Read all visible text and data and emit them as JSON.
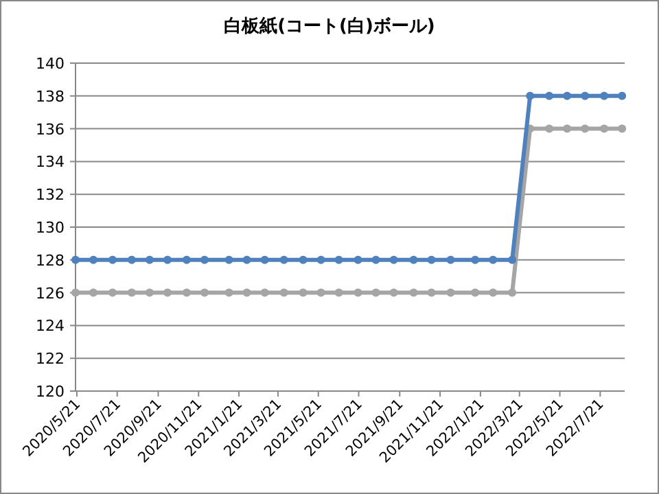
{
  "chart_data": {
    "type": "line",
    "title": "白板紙(コート(白)ボール)",
    "x": [
      "2020-05-19",
      "2020-06-15",
      "2020-07-14",
      "2020-08-12",
      "2020-09-08",
      "2020-10-05",
      "2020-11-03",
      "2020-11-30",
      "2021-01-06",
      "2021-02-02",
      "2021-03-01",
      "2021-03-30",
      "2021-04-28",
      "2021-05-25",
      "2021-06-21",
      "2021-07-20",
      "2021-08-16",
      "2021-09-12",
      "2021-10-12",
      "2021-11-08",
      "2021-12-07",
      "2022-01-13",
      "2022-02-09",
      "2022-03-10",
      "2022-04-06",
      "2022-05-05",
      "2022-06-01",
      "2022-06-28",
      "2022-07-27",
      "2022-08-23"
    ],
    "series": [
      {
        "color": "#a5a5a5",
        "values": [
          126,
          126,
          126,
          126,
          126,
          126,
          126,
          126,
          126,
          126,
          126,
          126,
          126,
          126,
          126,
          126,
          126,
          126,
          126,
          126,
          126,
          126,
          126,
          126,
          136,
          136,
          136,
          136,
          136,
          136
        ]
      },
      {
        "color": "#4f81bd",
        "values": [
          128,
          128,
          128,
          128,
          128,
          128,
          128,
          128,
          128,
          128,
          128,
          128,
          128,
          128,
          128,
          128,
          128,
          128,
          128,
          128,
          128,
          128,
          128,
          128,
          138,
          138,
          138,
          138,
          138,
          138
        ]
      }
    ],
    "xlim": [
      "2020-05-19",
      "2022-08-27"
    ],
    "xticks": [
      {
        "value": "2020-05-21",
        "label": "2020/5/21"
      },
      {
        "value": "2020-07-21",
        "label": "2020/7/21"
      },
      {
        "value": "2020-09-21",
        "label": "2020/9/21"
      },
      {
        "value": "2020-11-21",
        "label": "2020/11/21"
      },
      {
        "value": "2021-01-21",
        "label": "2021/1/21"
      },
      {
        "value": "2021-03-21",
        "label": "2021/3/21"
      },
      {
        "value": "2021-05-21",
        "label": "2021/5/21"
      },
      {
        "value": "2021-07-21",
        "label": "2021/7/21"
      },
      {
        "value": "2021-09-21",
        "label": "2021/9/21"
      },
      {
        "value": "2021-11-21",
        "label": "2021/11/21"
      },
      {
        "value": "2022-01-21",
        "label": "2022/1/21"
      },
      {
        "value": "2022-03-21",
        "label": "2022/3/21"
      },
      {
        "value": "2022-05-21",
        "label": "2022/5/21"
      },
      {
        "value": "2022-07-21",
        "label": "2022/7/21"
      }
    ],
    "ylim": [
      120,
      140
    ],
    "yticks": [
      120,
      122,
      124,
      126,
      128,
      130,
      132,
      134,
      136,
      138,
      140
    ],
    "grid": "y",
    "marker": "circle",
    "line_style": "solid"
  }
}
